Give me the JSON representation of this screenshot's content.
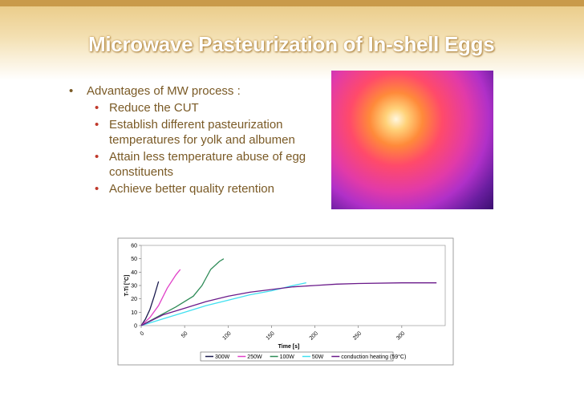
{
  "slide": {
    "title": "Microwave Pasteurization of In-shell Eggs",
    "bullet": "Advantages of MW process :",
    "sub_bullets": [
      "Reduce the CUT",
      "Establish different pasteurization temperatures for yolk and albumen",
      "Attain less temperature abuse of egg constituents",
      "Achieve better quality retention"
    ]
  },
  "chart_data": {
    "type": "line",
    "xlabel": "Time [s]",
    "ylabel": "T-Ti [°C]",
    "xlim": [
      0,
      350
    ],
    "xticks": [
      0,
      50,
      100,
      150,
      200,
      250,
      300
    ],
    "ylim": [
      0,
      60
    ],
    "yticks": [
      0,
      10,
      20,
      30,
      40,
      50,
      60
    ],
    "series": [
      {
        "name": "300W",
        "color": "#1a1a4e",
        "x": [
          0,
          5,
          10,
          15,
          20
        ],
        "values": [
          0,
          5,
          12,
          22,
          33
        ]
      },
      {
        "name": "250W",
        "color": "#e040c8",
        "x": [
          0,
          10,
          20,
          30,
          40,
          45
        ],
        "values": [
          0,
          6,
          15,
          28,
          38,
          42
        ]
      },
      {
        "name": "100W",
        "color": "#2e8b57",
        "x": [
          0,
          20,
          40,
          60,
          70,
          80,
          90,
          95
        ],
        "values": [
          0,
          7,
          14,
          22,
          30,
          42,
          48,
          50
        ]
      },
      {
        "name": "50W",
        "color": "#40e0f0",
        "x": [
          0,
          25,
          50,
          75,
          100,
          125,
          150,
          175,
          190
        ],
        "values": [
          0,
          5,
          10,
          15,
          19,
          23,
          26,
          30,
          32
        ]
      },
      {
        "name": "conduction heating (59°C)",
        "color": "#6a1a8a",
        "x": [
          0,
          25,
          50,
          75,
          100,
          125,
          150,
          175,
          200,
          225,
          250,
          300,
          340
        ],
        "values": [
          0,
          8,
          13,
          18,
          22,
          25,
          27,
          29,
          30,
          31,
          31.5,
          32,
          32
        ]
      }
    ]
  }
}
